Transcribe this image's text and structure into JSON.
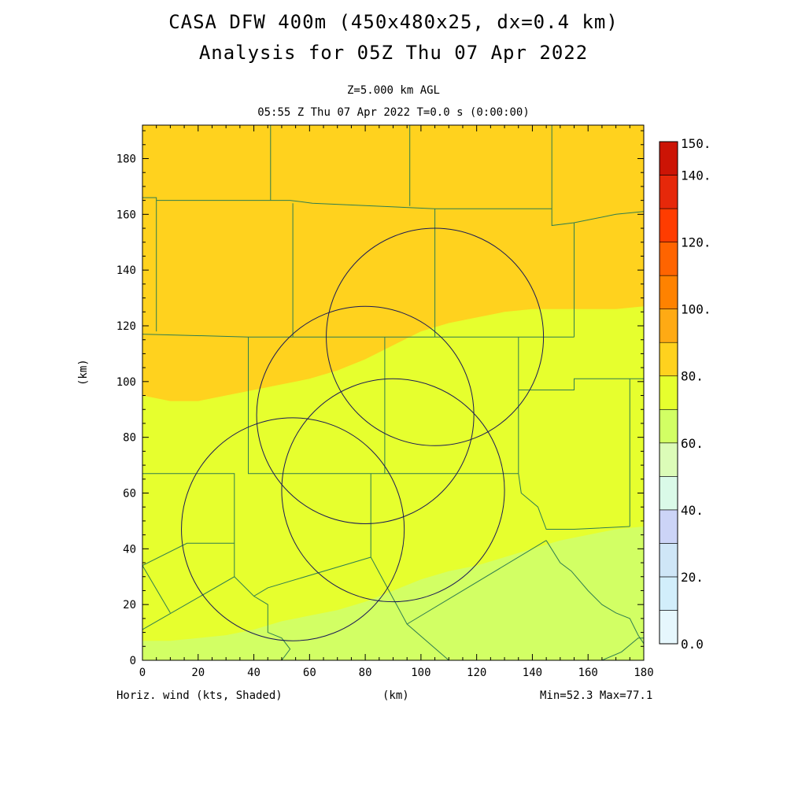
{
  "header": {
    "title_line1": "CASA DFW 400m (450x480x25, dx=0.4 km)",
    "title_line2": "Analysis for 05Z Thu 07 Apr 2022",
    "level": "Z=5.000 km AGL",
    "time": "05:55 Z Thu 07 Apr 2022    T=0.0 s (0:00:00)"
  },
  "footer": {
    "field_label": "Horiz. wind (kts, Shaded)",
    "x_unit": "(km)",
    "minmax": "Min=52.3 Max=77.1"
  },
  "colors": {
    "band_60_70": "#e6ff2e",
    "band_70_80": "#ffd21e",
    "band_50_60": "#d2ff64",
    "boundary": "#2e7d4f",
    "radar_ring": "#1a1a55"
  },
  "chart_data": {
    "type": "heatmap",
    "title": "CASA DFW 400m (450x480x25, dx=0.4 km)",
    "xlabel": "(km)",
    "ylabel": "(km)",
    "xlim": [
      0,
      180
    ],
    "ylim": [
      0,
      192
    ],
    "xticks": [
      0,
      20,
      40,
      60,
      80,
      100,
      120,
      140,
      160,
      180
    ],
    "yticks": [
      0,
      20,
      40,
      60,
      80,
      100,
      120,
      140,
      160,
      180
    ],
    "colorbar": {
      "levels": [
        0,
        10,
        20,
        30,
        40,
        50,
        60,
        70,
        80,
        90,
        100,
        110,
        120,
        130,
        140,
        150
      ],
      "colors": [
        "#e6f7fd",
        "#d2eefb",
        "#cfe6f7",
        "#ccd4f7",
        "#dafae8",
        "#dcfcb8",
        "#d2ff64",
        "#e6ff2e",
        "#ffd21e",
        "#ffaa14",
        "#ff8200",
        "#ff6400",
        "#ff3c00",
        "#e6280a",
        "#cc1405",
        "#b40000"
      ],
      "tick_labels": [
        "0.0",
        "20.",
        "40.",
        "60.",
        "80.",
        "100.",
        "120.",
        "140.",
        "150."
      ],
      "tick_values": [
        0,
        20,
        40,
        60,
        80,
        100,
        120,
        140,
        150
      ]
    },
    "shaded_regions": [
      {
        "range_kts": [
          70,
          80
        ],
        "color": "#ffd21e",
        "lower_boundary": [
          [
            0,
            95
          ],
          [
            10,
            93
          ],
          [
            20,
            93
          ],
          [
            30,
            95
          ],
          [
            40,
            97
          ],
          [
            50,
            99
          ],
          [
            60,
            101
          ],
          [
            70,
            104
          ],
          [
            80,
            108
          ],
          [
            90,
            113
          ],
          [
            100,
            118
          ],
          [
            110,
            121
          ],
          [
            120,
            123
          ],
          [
            130,
            125
          ],
          [
            140,
            126
          ],
          [
            150,
            126
          ],
          [
            160,
            126
          ],
          [
            170,
            126
          ],
          [
            180,
            127
          ]
        ]
      },
      {
        "range_kts": [
          60,
          70
        ],
        "color": "#e6ff2e"
      },
      {
        "range_kts": [
          50,
          60
        ],
        "color": "#d2ff64",
        "upper_boundary": [
          [
            0,
            7
          ],
          [
            10,
            7
          ],
          [
            20,
            8
          ],
          [
            30,
            9
          ],
          [
            40,
            11
          ],
          [
            50,
            14
          ],
          [
            60,
            16
          ],
          [
            70,
            18
          ],
          [
            80,
            21
          ],
          [
            90,
            25
          ],
          [
            100,
            29
          ],
          [
            110,
            32
          ],
          [
            120,
            34
          ],
          [
            130,
            37
          ],
          [
            140,
            40
          ],
          [
            150,
            43
          ],
          [
            160,
            45
          ],
          [
            170,
            47
          ],
          [
            180,
            48
          ]
        ]
      }
    ],
    "radar_rings": [
      {
        "center": [
          105,
          116
        ],
        "radius": 39
      },
      {
        "center": [
          80,
          88
        ],
        "radius": 39
      },
      {
        "center": [
          90,
          61
        ],
        "radius": 40
      },
      {
        "center": [
          54,
          47
        ],
        "radius": 40
      }
    ],
    "min": 52.3,
    "max": 77.1
  }
}
